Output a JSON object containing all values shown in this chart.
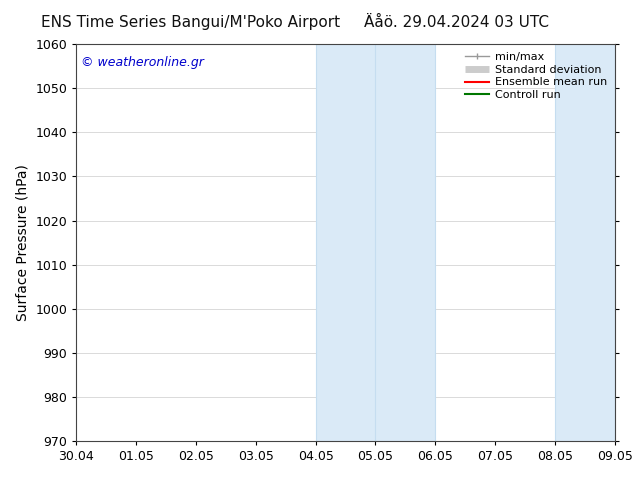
{
  "title_left": "ENS Time Series Bangui/M'Poko Airport",
  "title_right": "Äåö. 29.04.2024 03 UTC",
  "ylabel": "Surface Pressure (hPa)",
  "ylim": [
    970,
    1060
  ],
  "yticks": [
    970,
    980,
    990,
    1000,
    1010,
    1020,
    1030,
    1040,
    1050,
    1060
  ],
  "xtick_labels": [
    "30.04",
    "01.05",
    "02.05",
    "03.05",
    "04.05",
    "05.05",
    "06.05",
    "07.05",
    "08.05",
    "09.05"
  ],
  "xlim": [
    0,
    9
  ],
  "bg_color": "#ffffff",
  "plot_bg_color": "#ffffff",
  "shaded_bands": [
    {
      "xstart": 4.0,
      "xend": 5.0,
      "color": "#daeaf7"
    },
    {
      "xstart": 5.0,
      "xend": 6.0,
      "color": "#daeaf7"
    },
    {
      "xstart": 8.0,
      "xend": 9.0,
      "color": "#daeaf7"
    },
    {
      "xstart": 9.0,
      "xend": 10.0,
      "color": "#daeaf7"
    }
  ],
  "shaded_band_edge_color": "#c5ddf0",
  "watermark": "© weatheronline.gr",
  "watermark_color": "#0000cc",
  "legend_items": [
    {
      "label": "min/max",
      "color": "#999999",
      "lw": 1.0
    },
    {
      "label": "Standard deviation",
      "color": "#cccccc",
      "lw": 5
    },
    {
      "label": "Ensemble mean run",
      "color": "#ff0000",
      "lw": 1.5
    },
    {
      "label": "Controll run",
      "color": "#007700",
      "lw": 1.5
    }
  ],
  "title_fontsize": 11,
  "axis_label_fontsize": 10,
  "tick_fontsize": 9,
  "watermark_fontsize": 9,
  "legend_fontsize": 8
}
